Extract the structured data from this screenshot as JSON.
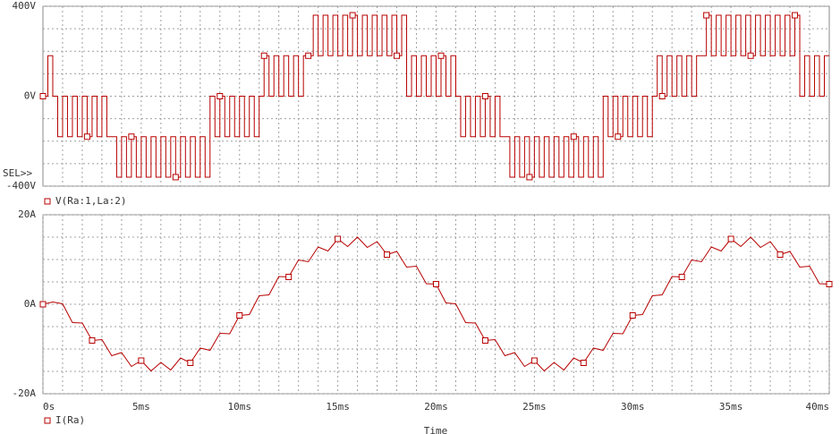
{
  "chart_data": [
    {
      "type": "line",
      "annotation": "SEL>>",
      "xlim": [
        0,
        40
      ],
      "ylim": [
        -400,
        400
      ],
      "yticks": [
        {
          "value": 400,
          "label": "400V"
        },
        {
          "value": 0,
          "label": "0V"
        },
        {
          "value": -400,
          "label": "-400V"
        }
      ],
      "yminorticks": [
        300,
        200,
        100,
        -100,
        -200,
        -300
      ],
      "xminorticks": [
        1,
        2,
        3,
        4,
        5,
        6,
        7,
        8,
        9,
        10,
        11,
        12,
        13,
        14,
        15,
        16,
        17,
        18,
        19,
        20,
        21,
        22,
        23,
        24,
        25,
        26,
        27,
        28,
        29,
        30,
        31,
        32,
        33,
        34,
        35,
        36,
        37,
        38,
        39
      ],
      "grid": true,
      "step": true,
      "x": [
        0,
        0.25,
        0.5,
        0.75,
        1,
        1.25,
        1.5,
        1.75,
        2,
        2.25,
        2.5,
        2.75,
        3,
        3.25,
        3.5,
        3.75,
        4,
        4.25,
        4.5,
        4.75,
        5,
        5.25,
        5.5,
        5.75,
        6,
        6.25,
        6.5,
        6.75,
        7,
        7.25,
        7.5,
        7.75,
        8,
        8.25,
        8.5,
        8.75,
        9,
        9.25,
        9.5,
        9.75,
        10,
        10.25,
        10.5,
        10.75,
        11,
        11.25,
        11.5,
        11.75,
        12,
        12.25,
        12.5,
        12.75,
        13,
        13.25,
        13.5,
        13.75,
        14,
        14.25,
        14.5,
        14.75,
        15,
        15.25,
        15.5,
        15.75,
        16,
        16.25,
        16.5,
        16.75,
        17,
        17.25,
        17.5,
        17.75,
        18,
        18.25,
        18.5,
        18.75,
        19,
        19.25,
        19.5,
        19.75,
        20,
        20.25,
        20.5,
        20.75,
        21,
        21.25,
        21.5,
        21.75,
        22,
        22.25,
        22.5,
        22.75,
        23,
        23.25,
        23.5,
        23.75,
        24,
        24.25,
        24.5,
        24.75,
        25,
        25.25,
        25.5,
        25.75,
        26,
        26.25,
        26.5,
        26.75,
        27,
        27.25,
        27.5,
        27.75,
        28,
        28.25,
        28.5,
        28.75,
        29,
        29.25,
        29.5,
        29.75,
        30,
        30.25,
        30.5,
        30.75,
        31,
        31.25,
        31.5,
        31.75,
        32,
        32.25,
        32.5,
        32.75,
        33,
        33.25,
        33.5,
        33.75,
        34,
        34.25,
        34.5,
        34.75,
        35,
        35.25,
        35.5,
        35.75,
        36,
        36.25,
        36.5,
        36.75,
        37,
        37.25,
        37.5,
        37.75,
        38,
        38.25,
        38.5,
        38.75,
        39,
        39.25,
        39.5,
        39.75,
        40
      ],
      "series": [
        {
          "name": "V(Ra:1,La:2)",
          "color": "#b80000",
          "values": [
            0,
            180,
            0,
            -180,
            0,
            -180,
            0,
            -180,
            0,
            -180,
            0,
            -180,
            0,
            -180,
            -180,
            -360,
            -180,
            -360,
            -180,
            -360,
            -180,
            -360,
            -180,
            -360,
            -180,
            -360,
            -180,
            -360,
            -180,
            -360,
            -180,
            -360,
            -180,
            -360,
            0,
            -180,
            0,
            -180,
            0,
            -180,
            0,
            -180,
            0,
            -180,
            0,
            180,
            0,
            180,
            0,
            180,
            0,
            180,
            0,
            180,
            180,
            360,
            180,
            360,
            180,
            360,
            180,
            360,
            180,
            360,
            180,
            360,
            180,
            360,
            180,
            360,
            180,
            360,
            180,
            360,
            0,
            180,
            0,
            180,
            0,
            180,
            0,
            180,
            0,
            180,
            0,
            -180,
            0,
            -180,
            0,
            -180,
            0,
            -180,
            0,
            -180,
            -180,
            -360,
            -180,
            -360,
            -180,
            -360,
            -180,
            -360,
            -180,
            -360,
            -180,
            -360,
            -180,
            -360,
            -180,
            -360,
            -180,
            -360,
            -180,
            -360,
            0,
            -180,
            0,
            -180,
            0,
            -180,
            0,
            -180,
            0,
            -180,
            0,
            180,
            0,
            180,
            0,
            180,
            0,
            180,
            0,
            180,
            180,
            360,
            180,
            360,
            180,
            360,
            180,
            360,
            180,
            360,
            180,
            360,
            180,
            360,
            180,
            360,
            180,
            360,
            180,
            360,
            0,
            180,
            0,
            180,
            0,
            180,
            180
          ]
        }
      ]
    },
    {
      "type": "line",
      "xlabel": "Time",
      "xlim": [
        0,
        40
      ],
      "ylim": [
        -20,
        20
      ],
      "yticks": [
        {
          "value": 20,
          "label": "20A"
        },
        {
          "value": 0,
          "label": "0A"
        },
        {
          "value": -20,
          "label": "-20A"
        }
      ],
      "yminorticks": [
        15,
        10,
        5,
        -5,
        -10,
        -15
      ],
      "xticks": [
        {
          "value": 0,
          "label": "0s"
        },
        {
          "value": 5,
          "label": "5ms"
        },
        {
          "value": 10,
          "label": "10ms"
        },
        {
          "value": 15,
          "label": "15ms"
        },
        {
          "value": 20,
          "label": "20ms"
        },
        {
          "value": 25,
          "label": "25ms"
        },
        {
          "value": 30,
          "label": "30ms"
        },
        {
          "value": 35,
          "label": "35ms"
        },
        {
          "value": 40,
          "label": "40ms"
        }
      ],
      "xminorticks": [
        1,
        2,
        3,
        4,
        6,
        7,
        8,
        9,
        11,
        12,
        13,
        14,
        16,
        17,
        18,
        19,
        21,
        22,
        23,
        24,
        26,
        27,
        28,
        29,
        31,
        32,
        33,
        34,
        36,
        37,
        38,
        39
      ],
      "grid": true,
      "step": false,
      "x": [
        0,
        0.5,
        1,
        1.5,
        2,
        2.5,
        3,
        3.5,
        4,
        4.5,
        5,
        5.5,
        6,
        6.5,
        7,
        7.5,
        8,
        8.5,
        9,
        9.5,
        10,
        10.5,
        11,
        11.5,
        12,
        12.5,
        13,
        13.5,
        14,
        14.5,
        15,
        15.5,
        16,
        16.5,
        17,
        17.5,
        18,
        18.5,
        19,
        19.5,
        20,
        20.5,
        21,
        21.5,
        22,
        22.5,
        23,
        23.5,
        24,
        24.5,
        25,
        25.5,
        26,
        26.5,
        27,
        27.5,
        28,
        28.5,
        29,
        29.5,
        30,
        30.5,
        31,
        31.5,
        32,
        32.5,
        33,
        33.5,
        34,
        34.5,
        35,
        35.5,
        36,
        36.5,
        37,
        37.5,
        38,
        38.5,
        39,
        39.5,
        40
      ],
      "series": [
        {
          "name": "I(Ra)",
          "color": "#b80000",
          "values": [
            0,
            0.5,
            0.1,
            -4.1,
            -4.2,
            -8.1,
            -7.9,
            -11.5,
            -10.8,
            -13.9,
            -12.6,
            -14.9,
            -13.0,
            -14.7,
            -12.0,
            -13.1,
            -9.8,
            -10.3,
            -6.5,
            -6.6,
            -2.5,
            -2.3,
            1.9,
            2.1,
            6.2,
            6.1,
            9.9,
            9.5,
            12.8,
            11.9,
            14.6,
            12.9,
            15.0,
            12.7,
            14.0,
            11.1,
            11.8,
            8.3,
            8.5,
            4.6,
            4.5,
            0.3,
            0.1,
            -4.1,
            -4.2,
            -8.1,
            -7.9,
            -11.5,
            -10.8,
            -13.9,
            -12.6,
            -14.9,
            -13.0,
            -14.7,
            -12.0,
            -13.1,
            -9.8,
            -10.3,
            -6.5,
            -6.6,
            -2.5,
            -2.3,
            1.9,
            2.1,
            6.2,
            6.1,
            9.9,
            9.5,
            12.8,
            11.9,
            14.6,
            12.9,
            15.0,
            12.7,
            14.0,
            11.1,
            11.8,
            8.3,
            8.5,
            4.6,
            4.5
          ]
        }
      ]
    }
  ]
}
